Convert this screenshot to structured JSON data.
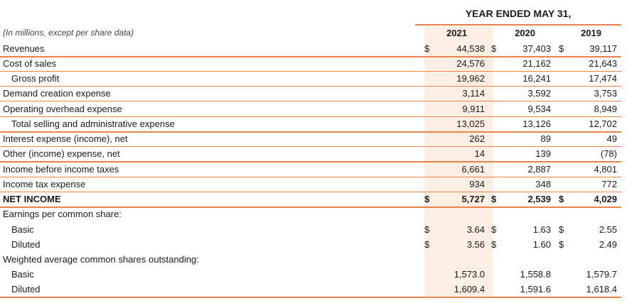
{
  "header": "YEAR ENDED MAY 31,",
  "note": "(In millions, except per share data)",
  "years": [
    "2021",
    "2020",
    "2019"
  ],
  "rows": [
    {
      "label": "Revenues",
      "c1": "$",
      "v1": "44,538",
      "c2": "$",
      "v2": "37,403",
      "c3": "$",
      "v3": "39,117"
    },
    {
      "label": "Cost of sales",
      "v1": "24,576",
      "v2": "21,162",
      "v3": "21,643"
    },
    {
      "label": "Gross profit",
      "v1": "19,962",
      "v2": "16,241",
      "v3": "17,474"
    },
    {
      "label": "Demand creation expense",
      "v1": "3,114",
      "v2": "3,592",
      "v3": "3,753"
    },
    {
      "label": "Operating overhead expense",
      "v1": "9,911",
      "v2": "9,534",
      "v3": "8,949"
    },
    {
      "label": "Total selling and administrative expense",
      "v1": "13,025",
      "v2": "13,126",
      "v3": "12,702"
    },
    {
      "label": "Interest expense (income), net",
      "v1": "262",
      "v2": "89",
      "v3": "49"
    },
    {
      "label": "Other (income) expense, net",
      "v1": "14",
      "v2": "139",
      "v3": "(78)"
    },
    {
      "label": "Income before income taxes",
      "v1": "6,661",
      "v2": "2,887",
      "v3": "4,801"
    },
    {
      "label": "Income tax expense",
      "v1": "934",
      "v2": "348",
      "v3": "772"
    },
    {
      "label": "NET INCOME",
      "c1": "$",
      "v1": "5,727",
      "c2": "$",
      "v2": "2,539",
      "c3": "$",
      "v3": "4,029"
    },
    {
      "label": "Earnings per common share:"
    },
    {
      "label": "Basic",
      "c1": "$",
      "v1": "3.64",
      "c2": "$",
      "v2": "1.63",
      "c3": "$",
      "v3": "2.55"
    },
    {
      "label": "Diluted",
      "c1": "$",
      "v1": "3.56",
      "c2": "$",
      "v2": "1.60",
      "c3": "$",
      "v3": "2.49"
    },
    {
      "label": "Weighted average common shares outstanding:"
    },
    {
      "label": "Basic",
      "v1": "1,573.0",
      "v2": "1,558.8",
      "v3": "1,579.7"
    },
    {
      "label": "Diluted",
      "v1": "1,609.4",
      "v2": "1,591.6",
      "v3": "1,618.4"
    }
  ]
}
